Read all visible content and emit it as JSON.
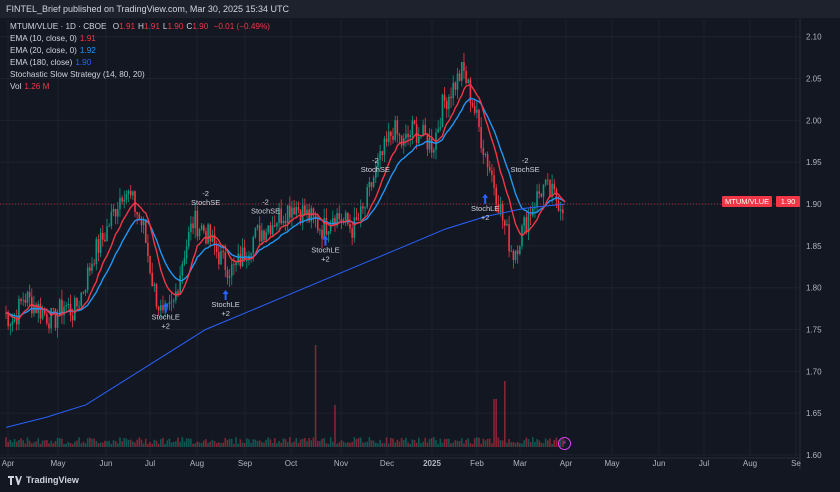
{
  "header": {
    "publisher": "FINTEL_Brief published on TradingView.com, Mar 30, 2025 15:34 UTC"
  },
  "legend": {
    "title": "MTUM/VLUE · 1D · CBOE",
    "ohlc": [
      {
        "k": "O",
        "v": "1.91"
      },
      {
        "k": "H",
        "v": "1.91"
      },
      {
        "k": "L",
        "v": "1.90"
      },
      {
        "k": "C",
        "v": "1.90"
      }
    ],
    "change": "−0.01 (−0.49%)",
    "ema10_label": "EMA (10, close, 0)",
    "ema10_value": "1.91",
    "ema20_label": "EMA (20, close, 0)",
    "ema20_value": "1.92",
    "ema180_label": "EMA (180, close)",
    "ema180_value": "1.90",
    "strategy_label": "Stochastic Slow Strategy (14, 80, 20)",
    "vol_label": "Vol",
    "vol_value": "1.26 M"
  },
  "price_tag": "1.90",
  "symbol_tag": "MTUM/VLUE",
  "brand": "TradingView",
  "colors": {
    "up": "#089981",
    "down": "#f23645",
    "ema10": "#f23645",
    "ema20": "#2196f3",
    "ema180": "#2962ff",
    "bg": "#131722"
  },
  "chart_data": {
    "type": "candlestick",
    "ylim": [
      1.6,
      2.12
    ],
    "y_ticks": [
      "1.60",
      "1.65",
      "1.70",
      "1.75",
      "1.80",
      "1.85",
      "1.90",
      "1.95",
      "2.00",
      "2.05",
      "2.10"
    ],
    "x_ticks": [
      "Apr",
      "May",
      "Jun",
      "Jul",
      "Aug",
      "Sep",
      "Oct",
      "Nov",
      "Dec",
      "2025",
      "Feb",
      "Mar",
      "Apr",
      "May",
      "Jun",
      "Jul",
      "Aug",
      "Se"
    ],
    "last_close": 1.9,
    "close_path": [
      [
        0,
        1.77
      ],
      [
        1,
        1.76
      ],
      [
        2,
        1.79
      ],
      [
        3,
        1.78
      ],
      [
        4,
        1.77
      ],
      [
        5,
        1.76
      ],
      [
        6,
        1.78
      ],
      [
        7,
        1.77
      ],
      [
        8,
        1.8
      ],
      [
        9,
        1.84
      ],
      [
        10,
        1.86
      ],
      [
        11,
        1.89
      ],
      [
        12,
        1.92
      ],
      [
        13,
        1.9
      ],
      [
        14,
        1.87
      ],
      [
        15,
        1.8
      ],
      [
        16,
        1.76
      ],
      [
        17,
        1.78
      ],
      [
        18,
        1.84
      ],
      [
        19,
        1.88
      ],
      [
        20,
        1.87
      ],
      [
        21,
        1.85
      ],
      [
        22,
        1.83
      ],
      [
        23,
        1.82
      ],
      [
        24,
        1.84
      ],
      [
        25,
        1.86
      ],
      [
        26,
        1.87
      ],
      [
        27,
        1.88
      ],
      [
        28,
        1.89
      ],
      [
        29,
        1.9
      ],
      [
        30,
        1.89
      ],
      [
        31,
        1.88
      ],
      [
        32,
        1.87
      ],
      [
        33,
        1.89
      ],
      [
        34,
        1.88
      ],
      [
        35,
        1.87
      ],
      [
        36,
        1.89
      ],
      [
        37,
        1.93
      ],
      [
        38,
        1.96
      ],
      [
        39,
        1.99
      ],
      [
        40,
        1.97
      ],
      [
        41,
        1.99
      ],
      [
        42,
        1.98
      ],
      [
        43,
        1.97
      ],
      [
        44,
        2.02
      ],
      [
        45,
        2.04
      ],
      [
        46,
        2.06
      ],
      [
        47,
        2.02
      ],
      [
        48,
        1.97
      ],
      [
        49,
        1.93
      ],
      [
        50,
        1.88
      ],
      [
        51,
        1.84
      ],
      [
        52,
        1.87
      ],
      [
        53,
        1.9
      ],
      [
        54,
        1.92
      ],
      [
        55,
        1.91
      ],
      [
        56,
        1.9
      ]
    ],
    "ema180_path": [
      [
        0,
        1.633
      ],
      [
        4,
        1.645
      ],
      [
        8,
        1.66
      ],
      [
        12,
        1.69
      ],
      [
        16,
        1.72
      ],
      [
        20,
        1.75
      ],
      [
        24,
        1.77
      ],
      [
        28,
        1.79
      ],
      [
        32,
        1.81
      ],
      [
        36,
        1.83
      ],
      [
        40,
        1.85
      ],
      [
        44,
        1.87
      ],
      [
        48,
        1.885
      ],
      [
        52,
        1.895
      ],
      [
        56,
        1.9
      ]
    ],
    "annotations": [
      {
        "text": "StochLE",
        "sub": "+2",
        "i": 16,
        "price": 1.775,
        "dir": "long"
      },
      {
        "text": "StochSE",
        "sub": "-2",
        "i": 20,
        "price": 1.895,
        "dir": "short"
      },
      {
        "text": "StochLE",
        "sub": "+2",
        "i": 22,
        "price": 1.79,
        "dir": "long"
      },
      {
        "text": "StochSE",
        "sub": "-2",
        "i": 26,
        "price": 1.885,
        "dir": "short"
      },
      {
        "text": "StochLE",
        "sub": "+2",
        "i": 32,
        "price": 1.855,
        "dir": "long"
      },
      {
        "text": "StochSE",
        "sub": "-2",
        "i": 37,
        "price": 1.935,
        "dir": "short"
      },
      {
        "text": "StochLE",
        "sub": "+2",
        "i": 48,
        "price": 1.905,
        "dir": "long"
      },
      {
        "text": "StochSE",
        "sub": "-2",
        "i": 52,
        "price": 1.935,
        "dir": "short"
      }
    ],
    "volume_spikes": [
      {
        "i": 31,
        "v": 0.85
      },
      {
        "i": 33,
        "v": 0.35
      },
      {
        "i": 49,
        "v": 0.4
      },
      {
        "i": 50,
        "v": 0.55
      }
    ]
  }
}
